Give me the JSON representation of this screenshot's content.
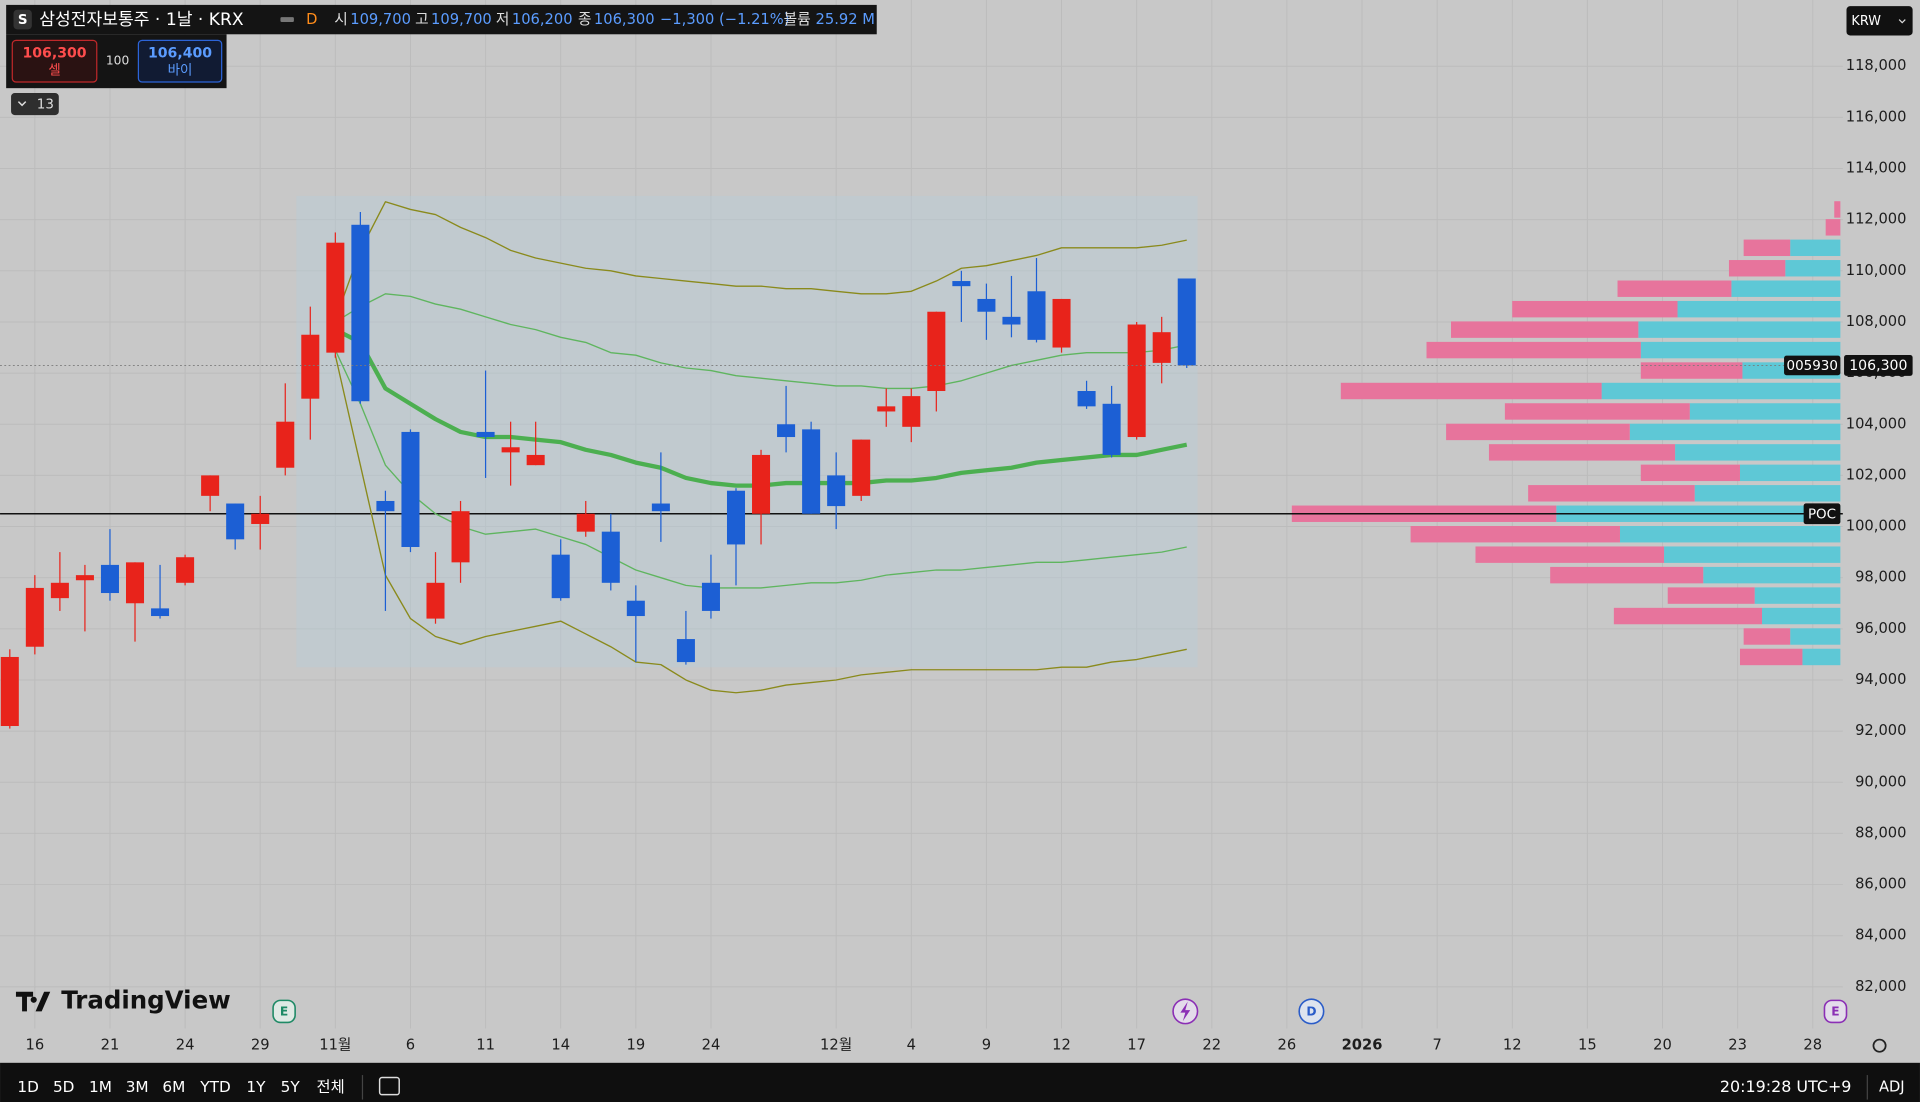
{
  "header": {
    "symbol_icon": "S",
    "title": "삼성전자보통주 · 1날 · KRX",
    "flag": "D",
    "ohlc": [
      {
        "label": "시",
        "value": "109,700"
      },
      {
        "label": "고",
        "value": "109,700"
      },
      {
        "label": "저",
        "value": "106,200"
      },
      {
        "label": "종",
        "value": "106,300"
      }
    ],
    "change": "−1,300 (−1.21%)",
    "volume_label": "볼륨",
    "volume": "25.92 M"
  },
  "trade": {
    "sell_price": "106,300",
    "sell": "셀",
    "spread": "100",
    "buy_price": "106,400",
    "buy": "바이"
  },
  "indicators_toggle": "13",
  "currency": "KRW",
  "symbol_tag": "005930",
  "price_tag": "106,300",
  "poc_tag": "POC",
  "events": [
    "E",
    "D",
    "E"
  ],
  "logo": "TradingView",
  "ranges": [
    "1D",
    "5D",
    "1M",
    "3M",
    "6M",
    "YTD",
    "1Y",
    "5Y",
    "전체"
  ],
  "clock": "20:19:28 UTC+9",
  "adj": "ADJ",
  "chart_data": {
    "type": "candlestick",
    "x": [
      0,
      1,
      2,
      3,
      4,
      5,
      6,
      7,
      8,
      9,
      10,
      11,
      12,
      13,
      14,
      15,
      16,
      17,
      18,
      19,
      20,
      21,
      22,
      23,
      24,
      25,
      26,
      27,
      28,
      29,
      30,
      31,
      32,
      33,
      34,
      35,
      36,
      37,
      38,
      39,
      40,
      41,
      42,
      43,
      44,
      45,
      46,
      47
    ],
    "open": [
      92200,
      95300,
      97200,
      97900,
      98500,
      97000,
      96800,
      97800,
      101200,
      100900,
      100100,
      102300,
      105000,
      106800,
      111800,
      101000,
      103700,
      96400,
      98600,
      103700,
      102900,
      102400,
      98900,
      99800,
      99800,
      97100,
      100900,
      95600,
      97800,
      101400,
      100500,
      104000,
      103800,
      102000,
      101200,
      104500,
      103900,
      105300,
      109600,
      108900,
      108200,
      109200,
      107000,
      105300,
      104800,
      103500,
      106400,
      109700
    ],
    "high": [
      95200,
      98100,
      99000,
      98500,
      99900,
      98600,
      98500,
      98900,
      102000,
      100900,
      101200,
      105600,
      108600,
      111500,
      112300,
      101400,
      103800,
      99000,
      101000,
      106100,
      104100,
      104100,
      99500,
      101000,
      100500,
      97700,
      102900,
      96700,
      98900,
      101500,
      103000,
      105500,
      104100,
      102900,
      103400,
      105400,
      105400,
      108400,
      110000,
      109500,
      109800,
      110500,
      108900,
      105700,
      105500,
      108000,
      108200,
      109700
    ],
    "low": [
      92100,
      95000,
      96700,
      95900,
      97100,
      95500,
      96400,
      97700,
      100600,
      99100,
      99100,
      102000,
      103400,
      106600,
      104800,
      96700,
      99000,
      96200,
      97800,
      101900,
      101600,
      102400,
      97100,
      99600,
      97500,
      94700,
      99400,
      94600,
      96400,
      97700,
      99300,
      102900,
      100500,
      99900,
      101000,
      103900,
      103300,
      104500,
      108000,
      107300,
      107400,
      107200,
      106800,
      104600,
      102700,
      103400,
      105600,
      106200
    ],
    "close": [
      94900,
      97600,
      97800,
      98100,
      97400,
      98600,
      96500,
      98800,
      102000,
      99500,
      100500,
      104100,
      107500,
      111100,
      104900,
      100600,
      99200,
      97800,
      100600,
      103500,
      103100,
      102800,
      97200,
      100500,
      97800,
      96500,
      100600,
      94700,
      96700,
      99300,
      102800,
      103500,
      100500,
      100800,
      103400,
      104700,
      105100,
      108400,
      109400,
      108400,
      107900,
      107300,
      108900,
      104700,
      102800,
      107900,
      107600,
      106300
    ],
    "up_color": "#e8231b",
    "down_color": "#1c5fd4",
    "bands": [
      {
        "color": "#8a8a1c",
        "values": [
          null,
          null,
          null,
          null,
          null,
          null,
          null,
          null,
          null,
          null,
          null,
          null,
          null,
          108100,
          110800,
          112700,
          112400,
          112200,
          111700,
          111300,
          110800,
          110500,
          110300,
          110100,
          110000,
          109800,
          109700,
          109600,
          109500,
          109400,
          109400,
          109300,
          109300,
          109200,
          109100,
          109100,
          109200,
          109600,
          110100,
          110200,
          110400,
          110600,
          110900,
          110900,
          110900,
          110900,
          111000,
          111200
        ]
      },
      {
        "color": "#5fb55f",
        "values": [
          null,
          null,
          null,
          null,
          null,
          null,
          null,
          null,
          null,
          null,
          null,
          null,
          null,
          108000,
          108600,
          109100,
          109000,
          108700,
          108500,
          108200,
          107900,
          107700,
          107400,
          107200,
          106800,
          106700,
          106400,
          106200,
          106100,
          105900,
          105800,
          105700,
          105600,
          105500,
          105500,
          105400,
          105400,
          105500,
          105700,
          106000,
          106300,
          106500,
          106700,
          106800,
          106800,
          106800,
          106900,
          107100
        ]
      },
      {
        "color": "#4caf50",
        "values": [
          null,
          null,
          null,
          null,
          null,
          null,
          null,
          null,
          null,
          null,
          null,
          null,
          null,
          107700,
          107200,
          105400,
          104800,
          104200,
          103700,
          103500,
          103500,
          103400,
          103300,
          103000,
          102800,
          102500,
          102300,
          101900,
          101700,
          101600,
          101600,
          101700,
          101700,
          101700,
          101700,
          101800,
          101800,
          101900,
          102100,
          102200,
          102300,
          102500,
          102600,
          102700,
          102800,
          102800,
          103000,
          103200
        ]
      },
      {
        "color": "#5fb55f",
        "values": [
          null,
          null,
          null,
          null,
          null,
          null,
          null,
          null,
          null,
          null,
          null,
          null,
          null,
          106900,
          104800,
          102400,
          101300,
          100500,
          100000,
          99700,
          99800,
          99900,
          99600,
          99300,
          98800,
          98300,
          98000,
          97700,
          97600,
          97600,
          97600,
          97700,
          97800,
          97800,
          97900,
          98100,
          98200,
          98300,
          98300,
          98400,
          98500,
          98600,
          98600,
          98700,
          98800,
          98900,
          99000,
          99200
        ]
      },
      {
        "color": "#8a8a1c",
        "values": [
          null,
          null,
          null,
          null,
          null,
          null,
          null,
          null,
          null,
          null,
          null,
          null,
          null,
          106700,
          102400,
          98100,
          96400,
          95700,
          95400,
          95700,
          95900,
          96100,
          96300,
          95800,
          95300,
          94700,
          94600,
          94000,
          93600,
          93500,
          93600,
          93800,
          93900,
          94000,
          94200,
          94300,
          94400,
          94400,
          94400,
          94400,
          94400,
          94400,
          94500,
          94500,
          94700,
          94800,
          95000,
          95200
        ]
      }
    ],
    "xlim": [
      -0.39,
      73.2
    ],
    "xticks": [
      {
        "value": 1,
        "label": "16"
      },
      {
        "value": 4,
        "label": "21"
      },
      {
        "value": 7,
        "label": "24"
      },
      {
        "value": 10,
        "label": "29"
      },
      {
        "value": 13,
        "label": "11월"
      },
      {
        "value": 16,
        "label": "6"
      },
      {
        "value": 19,
        "label": "11"
      },
      {
        "value": 22,
        "label": "14"
      },
      {
        "value": 25,
        "label": "19"
      },
      {
        "value": 28,
        "label": "24"
      },
      {
        "value": 33,
        "label": "12월"
      },
      {
        "value": 36,
        "label": "4"
      },
      {
        "value": 39,
        "label": "9"
      },
      {
        "value": 42,
        "label": "12"
      },
      {
        "value": 45,
        "label": "17"
      },
      {
        "value": 48,
        "label": "22"
      },
      {
        "value": 51,
        "label": "26"
      },
      {
        "value": 54,
        "label": "2026"
      },
      {
        "value": 57,
        "label": "7"
      },
      {
        "value": 60,
        "label": "12"
      },
      {
        "value": 63,
        "label": "15"
      },
      {
        "value": 66,
        "label": "20"
      },
      {
        "value": 69,
        "label": "23"
      },
      {
        "value": 72,
        "label": "28"
      }
    ],
    "ylim": [
      80370,
      120590
    ],
    "yticks": [
      {
        "value": 82000,
        "label": "82,000"
      },
      {
        "value": 84000,
        "label": "84,000"
      },
      {
        "value": 86000,
        "label": "86,000"
      },
      {
        "value": 88000,
        "label": "88,000"
      },
      {
        "value": 90000,
        "label": "90,000"
      },
      {
        "value": 92000,
        "label": "92,000"
      },
      {
        "value": 94000,
        "label": "94,000"
      },
      {
        "value": 96000,
        "label": "96,000"
      },
      {
        "value": 98000,
        "label": "98,000"
      },
      {
        "value": 100000,
        "label": "100,000"
      },
      {
        "value": 102000,
        "label": "102,000"
      },
      {
        "value": 104000,
        "label": "104,000"
      },
      {
        "value": 106000,
        "label": "106,000"
      },
      {
        "value": 108000,
        "label": "108,000"
      },
      {
        "value": 110000,
        "label": "110,000"
      },
      {
        "value": 112000,
        "label": "112,000"
      },
      {
        "value": 114000,
        "label": "114,000"
      },
      {
        "value": 116000,
        "label": "116,000"
      },
      {
        "value": 118000,
        "label": "118,000"
      }
    ],
    "grid": true,
    "profile": {
      "up_color": "#5ec8d6",
      "down_color": "#e7749c",
      "prices": [
        112400,
        111700,
        110900,
        110100,
        109300,
        108500,
        107700,
        106900,
        106100,
        105300,
        104500,
        103700,
        102900,
        102100,
        101300,
        100500,
        99700,
        98900,
        98100,
        97300,
        96500,
        95700,
        94900
      ],
      "up": [
        0,
        0,
        41,
        45,
        89,
        133,
        165,
        163,
        80,
        195,
        123,
        172,
        135,
        82,
        119,
        232,
        180,
        144,
        112,
        70,
        64,
        41,
        31
      ],
      "down": [
        5,
        12,
        38,
        46,
        93,
        135,
        153,
        175,
        83,
        213,
        151,
        150,
        152,
        81,
        136,
        216,
        171,
        154,
        125,
        71,
        121,
        38,
        51
      ]
    }
  }
}
